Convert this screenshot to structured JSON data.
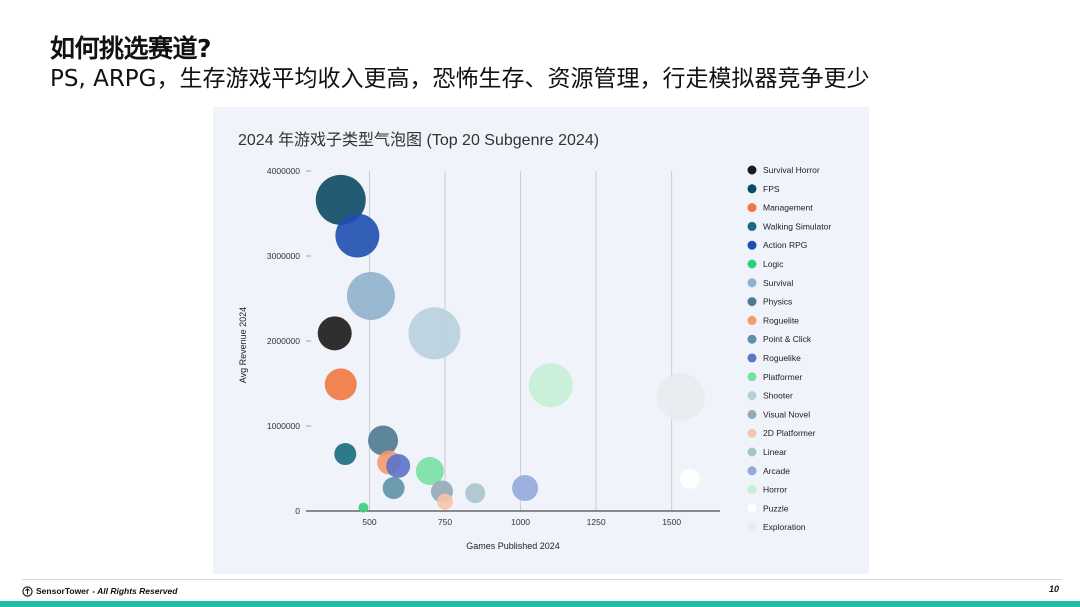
{
  "slide": {
    "title": "如何挑选赛道?",
    "subtitle": "PS, ARPG，生存游戏平均收入更高，恐怖生存、资源管理，行走模拟器竞争更少"
  },
  "footer": {
    "brand": "SensorTower",
    "rights": "- All Rights Reserved",
    "page_number": "10"
  },
  "chart_data": {
    "type": "bubble",
    "title": "2024 年游戏子类型气泡图 (Top 20 Subgenre 2024)",
    "xlabel": "Games Published 2024",
    "ylabel": "Avg Revenue 2024",
    "xlim": [
      290,
      1660
    ],
    "ylim": [
      0,
      4000000
    ],
    "x_ticks": [
      500,
      750,
      1000,
      1250,
      1500
    ],
    "y_ticks": [
      0,
      1000000,
      2000000,
      3000000,
      4000000
    ],
    "grid": "vertical",
    "legend_position": "right",
    "series": [
      {
        "name": "Survival Horror",
        "color": "#1a1a1a",
        "x": 385,
        "y": 2090000,
        "size": 17
      },
      {
        "name": "FPS",
        "color": "#0d4a63",
        "x": 405,
        "y": 3660000,
        "size": 25
      },
      {
        "name": "Management",
        "color": "#f07840",
        "x": 405,
        "y": 1490000,
        "size": 16
      },
      {
        "name": "Walking Simulator",
        "color": "#1a6b80",
        "x": 420,
        "y": 670000,
        "size": 11
      },
      {
        "name": "Action RPG",
        "color": "#1f4fb0",
        "x": 460,
        "y": 3240000,
        "size": 22
      },
      {
        "name": "Logic",
        "color": "#33d07a",
        "x": 480,
        "y": 40000,
        "size": 5
      },
      {
        "name": "Survival",
        "color": "#91b1cc",
        "x": 505,
        "y": 2530000,
        "size": 24
      },
      {
        "name": "Physics",
        "color": "#4e7a90",
        "x": 545,
        "y": 830000,
        "size": 15
      },
      {
        "name": "Roguelite",
        "color": "#f69a6f",
        "x": 565,
        "y": 570000,
        "size": 12
      },
      {
        "name": "Point & Click",
        "color": "#5c92a6",
        "x": 580,
        "y": 270000,
        "size": 11
      },
      {
        "name": "Roguelike",
        "color": "#5a74c9",
        "x": 595,
        "y": 530000,
        "size": 12
      },
      {
        "name": "Platformer",
        "color": "#79e0a4",
        "x": 700,
        "y": 470000,
        "size": 14
      },
      {
        "name": "Shooter",
        "color": "#b8d0de",
        "x": 715,
        "y": 2090000,
        "size": 26
      },
      {
        "name": "Visual Novel",
        "color": "#93a9b7",
        "x": 740,
        "y": 230000,
        "size": 11
      },
      {
        "name": "2D Platformer",
        "color": "#fac4aa",
        "x": 750,
        "y": 110000,
        "size": 8
      },
      {
        "name": "Linear",
        "color": "#a9c4ce",
        "x": 850,
        "y": 210000,
        "size": 10
      },
      {
        "name": "Arcade",
        "color": "#94aadb",
        "x": 1015,
        "y": 270000,
        "size": 13
      },
      {
        "name": "Horror",
        "color": "#c5f0d6",
        "x": 1100,
        "y": 1480000,
        "size": 22
      },
      {
        "name": "Puzzle",
        "color": "#ffffff",
        "x": 1560,
        "y": 380000,
        "size": 10
      },
      {
        "name": "Exploration",
        "color": "#e8ecf0",
        "x": 1530,
        "y": 1340000,
        "size": 24
      }
    ]
  }
}
